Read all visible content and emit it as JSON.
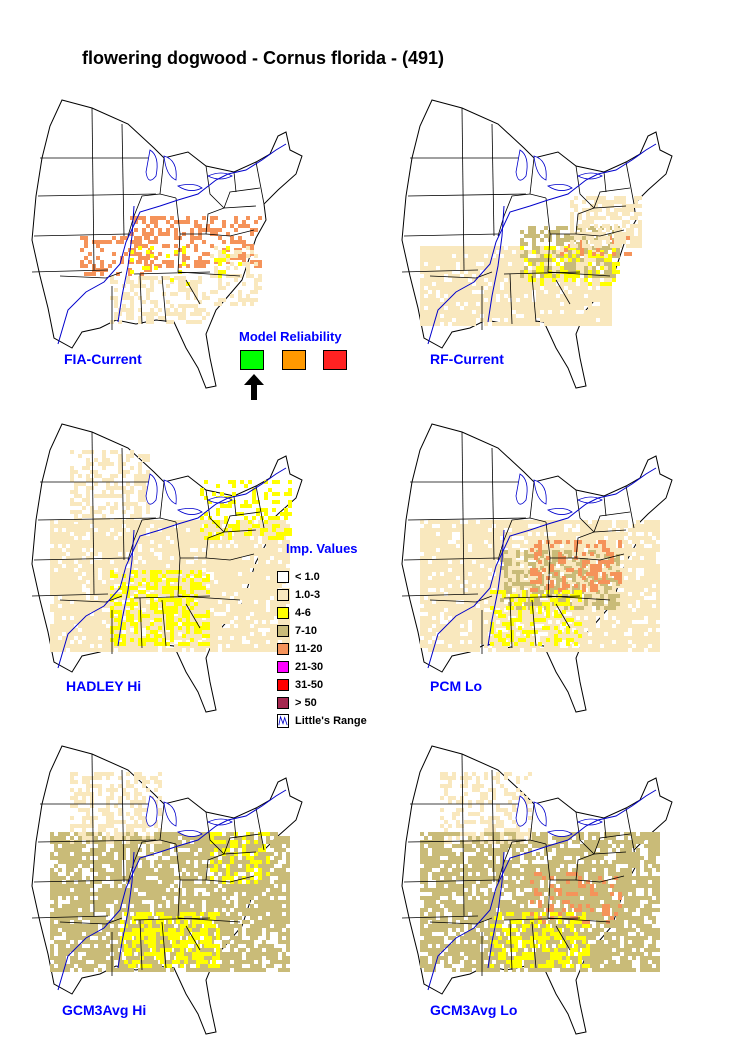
{
  "title": "flowering dogwood - Cornus florida - (491)",
  "maps": [
    {
      "label": "FIA-Current",
      "pattern": "fia"
    },
    {
      "label": "RF-Current",
      "pattern": "rf"
    },
    {
      "label": "HADLEY Hi",
      "pattern": "hadley"
    },
    {
      "label": "PCM Lo",
      "pattern": "pcm"
    },
    {
      "label": "GCM3Avg Hi",
      "pattern": "gcm_hi"
    },
    {
      "label": "GCM3Avg Lo",
      "pattern": "gcm_lo"
    }
  ],
  "model_reliability": {
    "title": "Model Reliability",
    "levels": [
      {
        "color": "#00ff00",
        "selected": true
      },
      {
        "color": "#ff9900",
        "selected": false
      },
      {
        "color": "#ff2222",
        "selected": false
      }
    ]
  },
  "legend": {
    "title": "Imp. Values",
    "classes": [
      {
        "label": "< 1.0",
        "color": "#ffffff"
      },
      {
        "label": "1.0-3",
        "color": "#f9e8be"
      },
      {
        "label": "4-6",
        "color": "#ffff00"
      },
      {
        "label": "7-10",
        "color": "#c9bb78"
      },
      {
        "label": "11-20",
        "color": "#f5935a"
      },
      {
        "label": "21-30",
        "color": "#ff00ff"
      },
      {
        "label": "31-50",
        "color": "#ff0000"
      },
      {
        "label": "> 50",
        "color": "#a52850"
      }
    ],
    "range_label": "Little's Range"
  },
  "colors": {
    "label_blue": "#0000ff",
    "range_line": "#0000cc",
    "state_line": "#000000"
  }
}
